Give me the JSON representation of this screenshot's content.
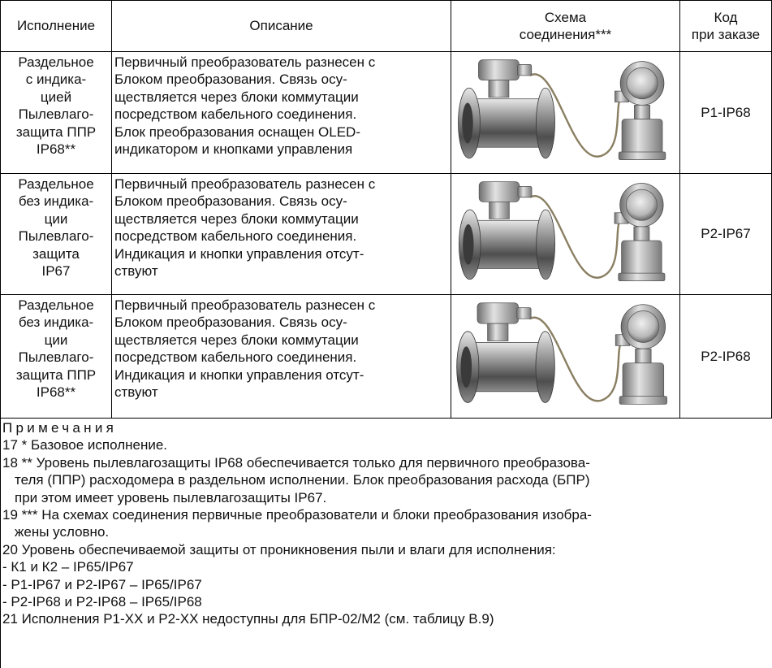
{
  "table": {
    "header": [
      [
        "Исполнение"
      ],
      [
        "Описание"
      ],
      [
        "Схема",
        "соединения***"
      ],
      [
        "Код",
        "при заказе"
      ]
    ],
    "rows": [
      {
        "version": [
          "Раздельное",
          "с индика-",
          "цией",
          "Пылевлаго-",
          "защита ППР",
          "IP68**"
        ],
        "description": [
          "Первичный преобразователь разнесен с",
          "Блоком преобразования. Связь осу-",
          "ществляется через блоки коммутации",
          "посредством кабельного соединения.",
          "Блок преобразования оснащен OLED-",
          "индикатором и кнопками управления"
        ],
        "code": "P1-IP68"
      },
      {
        "version": [
          "Раздельное",
          "без индика-",
          "ции",
          "Пылевлаго-",
          "защита",
          "IP67"
        ],
        "description": [
          "Первичный преобразователь разнесен с",
          "Блоком преобразования. Связь осу-",
          "ществляется через блоки коммутации",
          "посредством кабельного соединения.",
          "Индикация и кнопки управления отсут-",
          "ствуют"
        ],
        "code": "P2-IP67"
      },
      {
        "version": [
          "Раздельное",
          "без индика-",
          "ции",
          "Пылевлаго-",
          "защита ППР",
          "IP68**"
        ],
        "description": [
          "Первичный преобразователь разнесен с",
          "Блоком преобразования. Связь осу-",
          "ществляется через блоки коммутации",
          "посредством кабельного соединения.",
          "Индикация и кнопки управления отсут-",
          "ствуют"
        ],
        "code": "P2-IP68"
      }
    ]
  },
  "notes": {
    "title": "Примечания",
    "items": [
      [
        "17 * Базовое исполнение."
      ],
      [
        "18 ** Уровень пылевлагозащиты IP68 обеспечивается только для первичного преобразова-",
        "теля (ППР) расходомера в раздельном исполнении. Блок преобразования расхода (БПР)",
        "при этом имеет уровень пылевлагозащиты IP67."
      ],
      [
        "19 *** На схемах соединения первичные преобразователи и блоки преобразования изобра-",
        "жены условно."
      ],
      [
        "20 Уровень обеспечиваемой защиты от проникновения пыли и влаги для исполнения:"
      ],
      [
        "- К1 и К2 – IP65/IP67"
      ],
      [
        "- P1-IP67 и P2-IP67 – IP65/IP67"
      ],
      [
        "- P2-IP68 и P2-IP68 – IP65/IP68"
      ],
      [
        "21 Исполнения P1-XX и P2-XX недоступны для БПР-02/М2 (см. таблицу В.9)"
      ]
    ]
  }
}
